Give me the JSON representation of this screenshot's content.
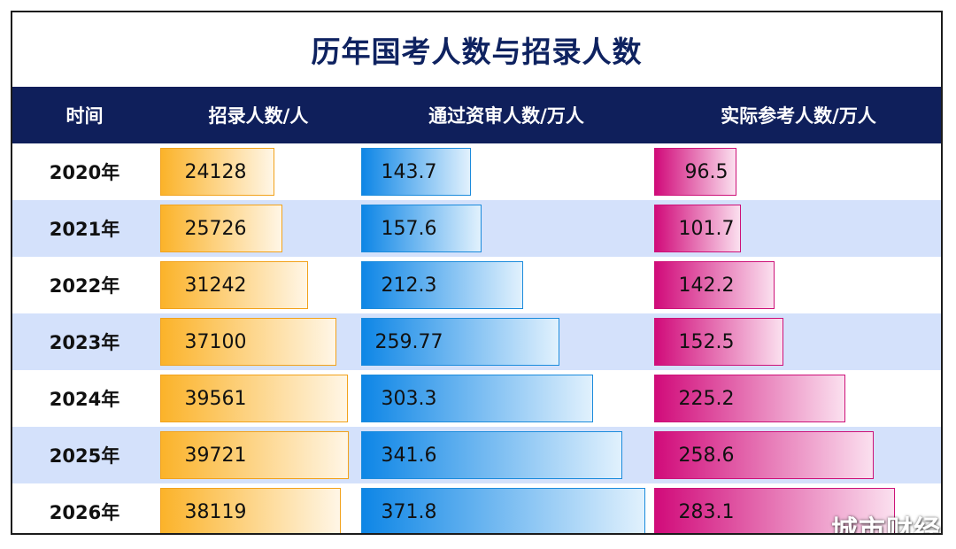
{
  "chart_data": {
    "type": "bar",
    "title": "历年国考人数与招录人数",
    "columns": [
      "时间",
      "招录人数/人",
      "通过资审人数/万人",
      "实际参考人数/万人"
    ],
    "categories": [
      "2020年",
      "2021年",
      "2022年",
      "2023年",
      "2024年",
      "2025年",
      "2026年"
    ],
    "series": [
      {
        "name": "招录人数/人",
        "values": [
          "24128",
          "25726",
          "31242",
          "37100",
          "39561",
          "39721",
          "38119"
        ],
        "color": "#fbb32a"
      },
      {
        "name": "通过资审人数/万人",
        "values": [
          "143.7",
          "157.6",
          "212.3",
          "259.77",
          "303.3",
          "341.6",
          "371.8"
        ],
        "color": "#0e86e6"
      },
      {
        "name": "实际参考人数/万人",
        "values": [
          "96.5",
          "101.7",
          "142.2",
          "152.5",
          "225.2",
          "258.6",
          "283.1"
        ],
        "color": "#d10b7a"
      }
    ]
  },
  "colors": {
    "title": "#0e2260",
    "header_bg": "#0f1f5b",
    "alt_row_bg": "#d4e1fb"
  },
  "watermark": "城市财经"
}
